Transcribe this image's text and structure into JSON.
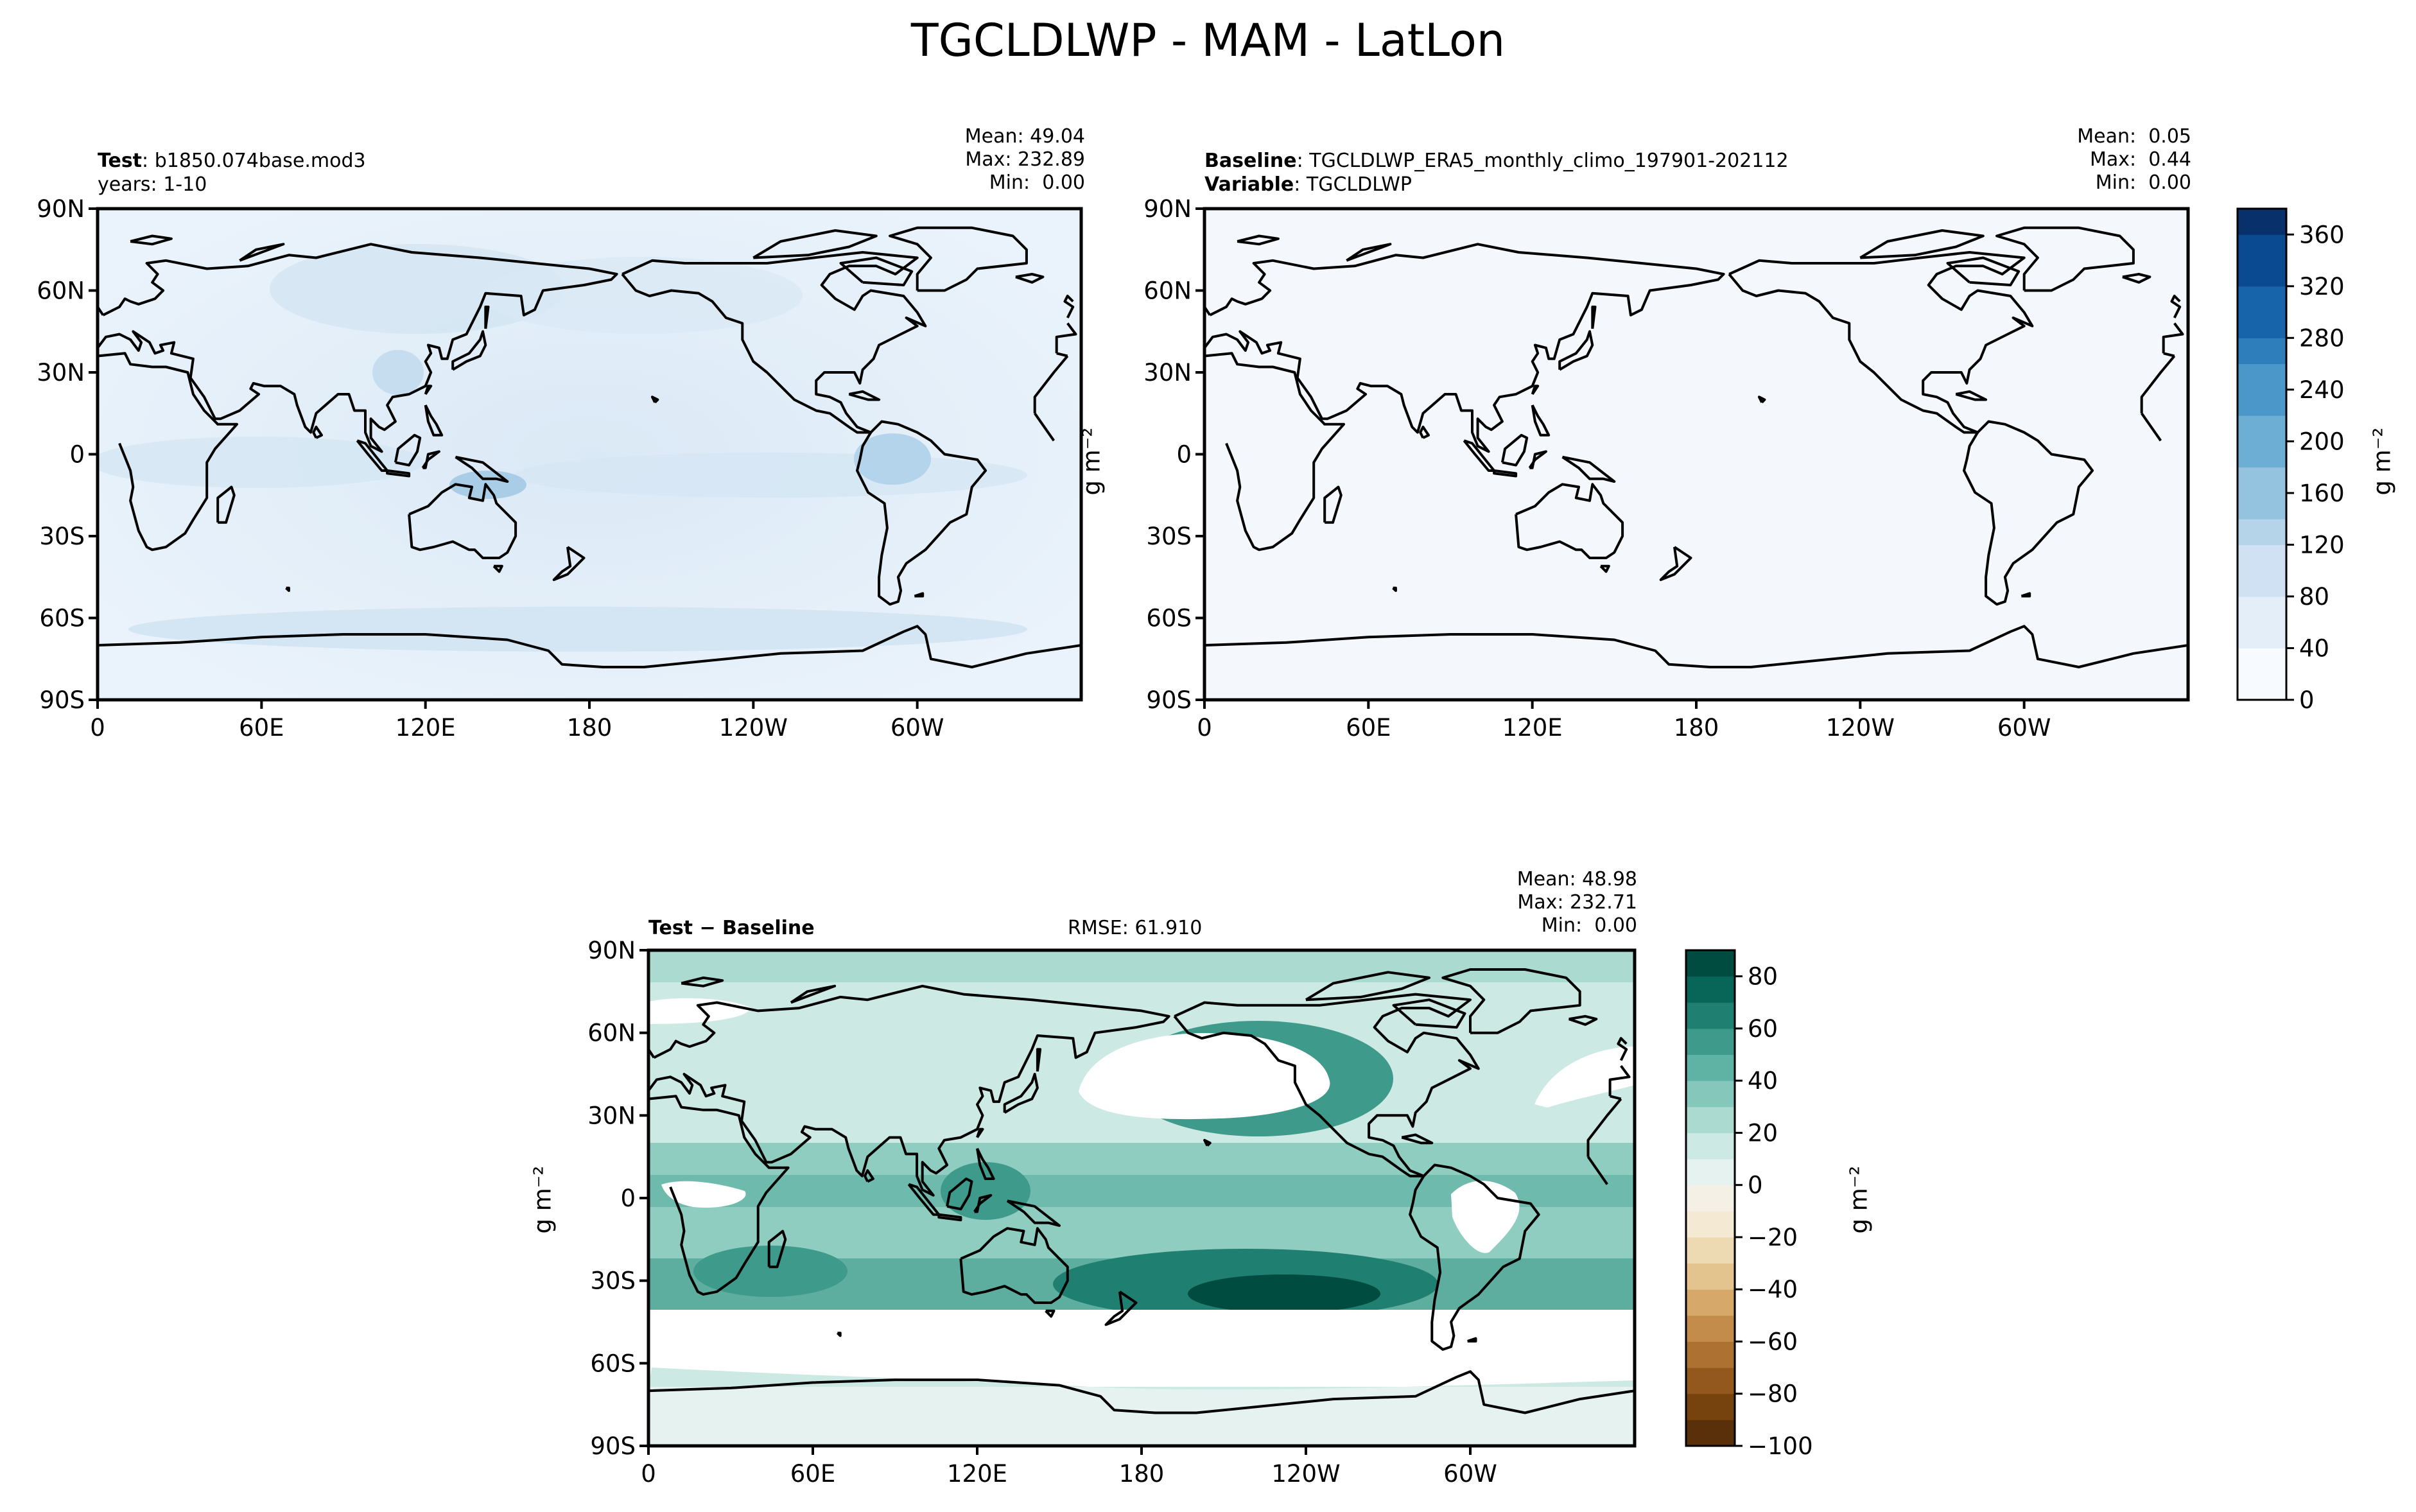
{
  "figure": {
    "title": "TGCLDLWP - MAM - LatLon"
  },
  "colors": {
    "blues_colorbar": [
      "#f7fbff",
      "#e3eef9",
      "#cfe1f2",
      "#b5d4e9",
      "#93c3df",
      "#6daed5",
      "#4b97c9",
      "#2f7ebc",
      "#1864aa",
      "#0a4a90",
      "#08306b"
    ],
    "diff_colorbar": [
      "#5a300a",
      "#76420e",
      "#93581e",
      "#ad7231",
      "#c38c4a",
      "#d6a86a",
      "#e3c38e",
      "#edd9b2",
      "#f4ead3",
      "#f5f0e6",
      "#e5f2ef",
      "#cde9e3",
      "#abdad0",
      "#85c8bb",
      "#5fb3a4",
      "#3e9a8b",
      "#1f7f71",
      "#086659",
      "#014c40"
    ],
    "land_fill_test": "#eef5fc",
    "baseline_fill": "#f4f8fd"
  },
  "panels": {
    "test": {
      "label_bold": "Test",
      "label_value": "b1850.074base.mod3",
      "years": "years: 1-10",
      "stats": [
        "Mean: 49.04",
        "Max: 232.89",
        "Min:  0.00"
      ]
    },
    "baseline": {
      "label_bold": "Baseline",
      "label_value": "TGCLDLWP_ERA5_monthly_climo_197901-202112",
      "variable_bold": "Variable",
      "variable_value": "TGCLDLWP",
      "stats": [
        "Mean:  0.05",
        "Max:  0.44",
        "Min:  0.00"
      ]
    },
    "diff": {
      "label": "Test − Baseline",
      "rmse": "RMSE: 61.910",
      "stats": [
        "Mean: 48.98",
        "Max: 232.71",
        "Min:  0.00"
      ]
    }
  },
  "axes": {
    "lat_ticks": [
      "90N",
      "60N",
      "30N",
      "0",
      "30S",
      "60S",
      "90S"
    ],
    "lon_ticks": [
      "0",
      "60E",
      "120E",
      "180",
      "120W",
      "60W"
    ],
    "units": "g m⁻²"
  },
  "chart_data": [
    {
      "type": "heatmap",
      "title": "Test: b1850.074base.mod3",
      "x": "longitude",
      "y": "latitude",
      "xlim": [
        0,
        360
      ],
      "ylim": [
        -90,
        90
      ],
      "colorbar": {
        "ticks": [
          0,
          40,
          80,
          120,
          160,
          200,
          240,
          280,
          320,
          360
        ],
        "range": [
          0,
          380
        ],
        "label": "g m⁻²"
      },
      "stats": {
        "mean": 49.04,
        "max": 232.89,
        "min": 0.0
      }
    },
    {
      "type": "heatmap",
      "title": "Baseline: TGCLDLWP_ERA5_monthly_climo_197901-202112",
      "x": "longitude",
      "y": "latitude",
      "xlim": [
        0,
        360
      ],
      "ylim": [
        -90,
        90
      ],
      "colorbar": {
        "ticks": [
          0,
          40,
          80,
          120,
          160,
          200,
          240,
          280,
          320,
          360
        ],
        "range": [
          0,
          380
        ],
        "label": "g m⁻²"
      },
      "stats": {
        "mean": 0.05,
        "max": 0.44,
        "min": 0.0
      }
    },
    {
      "type": "heatmap",
      "title": "Test − Baseline",
      "x": "longitude",
      "y": "latitude",
      "xlim": [
        0,
        360
      ],
      "ylim": [
        -90,
        90
      ],
      "colorbar": {
        "ticks": [
          -100,
          -80,
          -60,
          -40,
          -20,
          0,
          20,
          40,
          60,
          80
        ],
        "range": [
          -100,
          90
        ],
        "label": "g m⁻²"
      },
      "stats": {
        "mean": 48.98,
        "max": 232.71,
        "min": 0.0,
        "rmse": 61.91
      }
    }
  ]
}
